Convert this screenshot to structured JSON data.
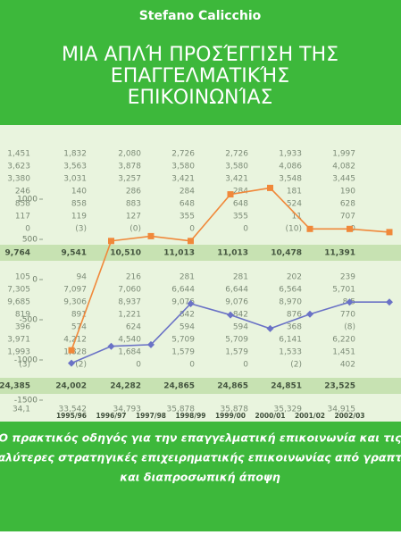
{
  "author": "Stefano Calicchio",
  "title": [
    "ΜΙΑ ΑΠΛΉ ΠΡΟΣΈΓΓΙΣΗ ΤΗΣ",
    "ΕΠΑΓΓΕΛΜΑΤΙΚΉΣ",
    "ΕΠΙΚΟΙΝΩΝΊΑΣ"
  ],
  "subtitle": [
    "Ο πρακτικός οδηγός για την επαγγελματική επικοινωνία και τις",
    "καλύτερες στρατηγικές επιχειρηματικής επικοινωνίας από γραπτή",
    "και διαπροσωπική άποψη"
  ],
  "background_table": {
    "highlighted_rows": [
      7,
      16
    ],
    "rows": [
      [
        "1,451",
        "1,832",
        "2,080",
        "2,726",
        "2,726",
        "1,933",
        "1,997"
      ],
      [
        "3,623",
        "3,563",
        "3,878",
        "3,580",
        "3,580",
        "4,086",
        "4,082"
      ],
      [
        "3,380",
        "3,031",
        "3,257",
        "3,421",
        "3,421",
        "3,548",
        "3,445"
      ],
      [
        "246",
        "140",
        "286",
        "284",
        "284",
        "181",
        "190"
      ],
      [
        "858",
        "858",
        "883",
        "648",
        "648",
        "524",
        "628"
      ],
      [
        "117",
        "119",
        "127",
        "355",
        "355",
        "11",
        "707"
      ],
      [
        "0",
        "(3)",
        "(0)",
        "0",
        "0",
        "(10)",
        "0"
      ],
      [
        "9,764",
        "9,541",
        "10,510",
        "11,013",
        "11,013",
        "10,478",
        "11,391"
      ],
      [
        "105",
        "94",
        "216",
        "281",
        "281",
        "202",
        "239"
      ],
      [
        "7,305",
        "7,097",
        "7,060",
        "6,644",
        "6,644",
        "6,564",
        "5,701"
      ],
      [
        "9,685",
        "9,306",
        "8,937",
        "9,076",
        "9,076",
        "8,970",
        "8,5"
      ],
      [
        "819",
        "891",
        "1,221",
        "842",
        "842",
        "876",
        "770"
      ],
      [
        "396",
        "574",
        "624",
        "594",
        "594",
        "368",
        "(8)"
      ],
      [
        "3,971",
        "4,212",
        "4,540",
        "5,709",
        "5,709",
        "6,141",
        "6,220"
      ],
      [
        "1,993",
        "1,828",
        "1,684",
        "1,579",
        "1,579",
        "1,533",
        "1,451"
      ],
      [
        "(3)",
        "(2)",
        "0",
        "0",
        "0",
        "(2)",
        "402"
      ],
      [
        "24,385",
        "24,002",
        "24,282",
        "24,865",
        "24,865",
        "24,851",
        "23,525"
      ],
      [
        "34,1",
        "33,542",
        "34,793",
        "35,878",
        "35,878",
        "35,329",
        "34,915"
      ]
    ]
  },
  "chart_data": {
    "type": "line",
    "categories": [
      "1995/96",
      "1996/97",
      "1997/98",
      "1998/99",
      "1999/00",
      "2000/01",
      "2001/02",
      "2002/03",
      null
    ],
    "series": [
      {
        "color": "#f0883a",
        "values": [
          -880,
          480,
          540,
          480,
          1060,
          1140,
          630,
          630,
          590
        ]
      },
      {
        "color": "#6a72c6",
        "values": [
          -1040,
          -830,
          -810,
          -300,
          -440,
          -610,
          -430,
          -280,
          -280
        ]
      }
    ],
    "ylim": [
      -1500,
      1500
    ],
    "yticks": [
      -1500,
      -1000,
      -500,
      0,
      500,
      1000
    ]
  }
}
